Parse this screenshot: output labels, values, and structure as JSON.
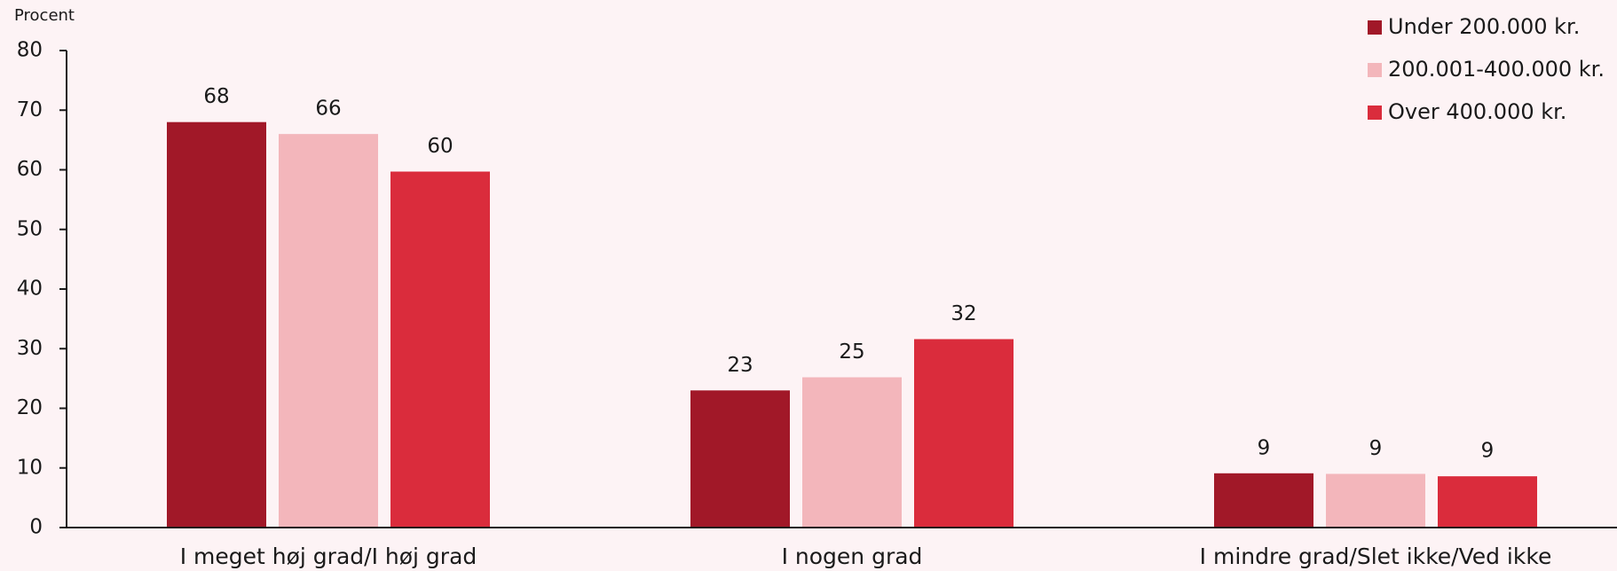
{
  "chart_data": {
    "type": "bar",
    "y_label": "Procent",
    "categories": [
      "I meget høj grad/I høj grad",
      "I nogen grad",
      "I mindre grad/Slet ikke/Ved ikke"
    ],
    "series": [
      {
        "name": "Under 200.000 kr.",
        "color": "#a11828",
        "values": [
          68,
          23,
          9.1
        ],
        "value_labels": [
          "68",
          "23",
          "9"
        ]
      },
      {
        "name": "200.001-400.000 kr.",
        "color": "#f3b6bb",
        "values": [
          66,
          25.2,
          9
        ],
        "value_labels": [
          "66",
          "25",
          "9"
        ]
      },
      {
        "name": "Over 400.000 kr.",
        "color": "#da2c3c",
        "values": [
          59.7,
          31.6,
          8.6
        ],
        "value_labels": [
          "60",
          "32",
          "9"
        ]
      }
    ],
    "ylim": [
      0,
      80
    ],
    "yticks": [
      0,
      10,
      20,
      30,
      40,
      50,
      60,
      70,
      80
    ],
    "legend": "top-right"
  }
}
